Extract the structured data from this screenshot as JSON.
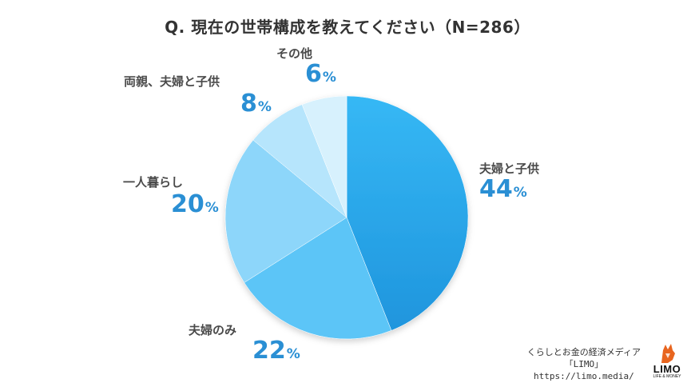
{
  "chart_data": {
    "type": "pie",
    "title": "Q. 現在の世帯構成を教えてください（N=286）",
    "categories": [
      "夫婦と子供",
      "夫婦のみ",
      "一人暮らし",
      "両親、夫婦と子供",
      "その他"
    ],
    "values": [
      44,
      22,
      20,
      8,
      6
    ],
    "unit": "%",
    "colors": [
      "#2eaaf0",
      "#5cc5f7",
      "#8dd6fa",
      "#b6e5fc",
      "#d7f1fd"
    ],
    "legend": "none"
  },
  "footer": {
    "line1": "くらしとお金の経済メディア",
    "line2": "「LIMO」",
    "line3": "https://limo.media/"
  },
  "logo": {
    "word": "LIMO",
    "tagline": "LIFE & MONEY"
  }
}
